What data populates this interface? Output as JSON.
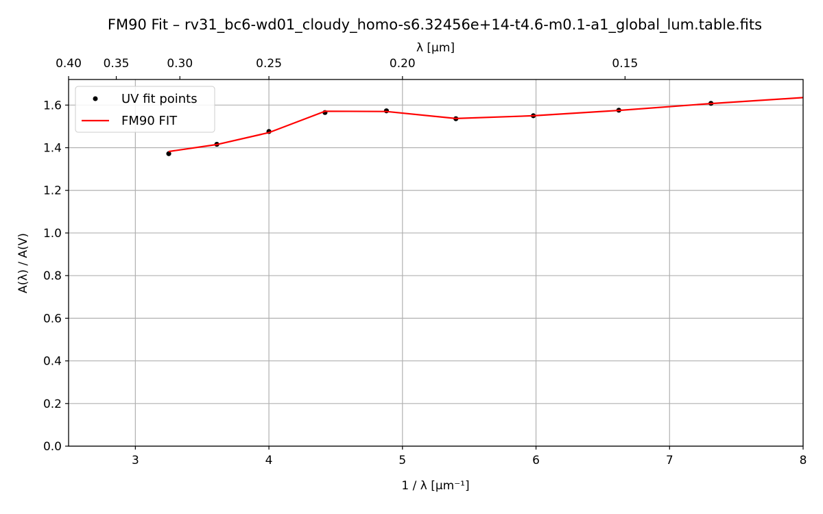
{
  "chart_data": {
    "type": "line",
    "title": "FM90 Fit – rv31_bc6-wd01_cloudy_homo-s6.32456e+14-t4.6-m0.1-a1_global_lum.table.fits",
    "xlabel": "1 / λ [μm⁻¹]",
    "ylabel": "A(λ) / A(V)",
    "top_xlabel": "λ [μm]",
    "xlim": [
      2.5,
      8.0
    ],
    "ylim": [
      0.0,
      1.72
    ],
    "grid": true,
    "legend_position": "upper-left",
    "x_ticks": [
      3,
      4,
      5,
      6,
      7,
      8
    ],
    "y_ticks": [
      0.0,
      0.2,
      0.4,
      0.6,
      0.8,
      1.0,
      1.2,
      1.4,
      1.6
    ],
    "y_tick_labels": [
      "0.0",
      "0.2",
      "0.4",
      "0.6",
      "0.8",
      "1.0",
      "1.2",
      "1.4",
      "1.6"
    ],
    "top_ticks": [
      0.4,
      0.35,
      0.3,
      0.25,
      0.2,
      0.15
    ],
    "top_tick_labels": [
      "0.40",
      "0.35",
      "0.30",
      "0.25",
      "0.20",
      "0.15"
    ],
    "series": [
      {
        "name": "UV fit points",
        "kind": "scatter",
        "color": "#000000",
        "x": [
          3.25,
          3.61,
          4.0,
          4.42,
          4.88,
          5.4,
          5.98,
          6.62,
          7.31
        ],
        "y": [
          1.372,
          1.416,
          1.476,
          1.565,
          1.573,
          1.536,
          1.55,
          1.576,
          1.608
        ]
      },
      {
        "name": "FM90 FIT",
        "kind": "line",
        "color": "#ff0000",
        "x": [
          3.25,
          3.61,
          4.0,
          4.42,
          4.88,
          5.4,
          5.98,
          6.62,
          7.31,
          8.0
        ],
        "y": [
          1.382,
          1.415,
          1.471,
          1.571,
          1.57,
          1.537,
          1.55,
          1.575,
          1.607,
          1.635
        ]
      }
    ]
  }
}
